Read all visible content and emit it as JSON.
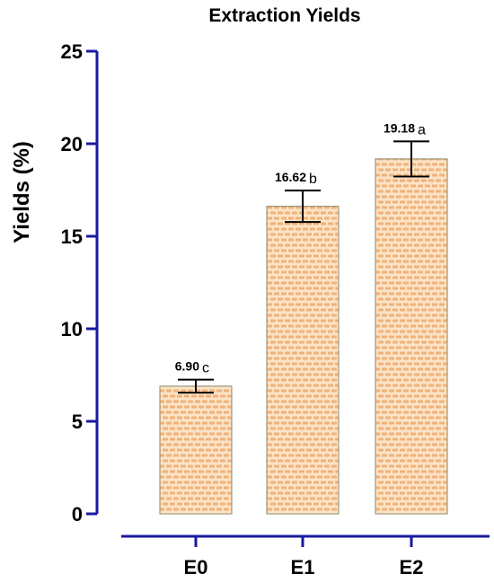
{
  "chart_data": {
    "type": "bar",
    "title": "Extraction Yields",
    "ylabel": "Yields (%)",
    "xlabel": "",
    "categories": [
      "E0",
      "E1",
      "E2"
    ],
    "values": [
      6.9,
      16.62,
      19.18
    ],
    "errors": [
      0.35,
      0.85,
      0.95
    ],
    "value_labels": [
      "6.90",
      "16.62",
      "19.18"
    ],
    "significance_letters": [
      "c",
      "b",
      "a"
    ],
    "ylim": [
      0,
      25
    ],
    "yticks": [
      0,
      5,
      10,
      15,
      20,
      25
    ],
    "grid": false,
    "bar_fill": "#fbe3c6",
    "bar_pattern_color": "#f0b27a",
    "bar_edge": "#8a8a6a",
    "axis_color": "#1a1aa0"
  }
}
